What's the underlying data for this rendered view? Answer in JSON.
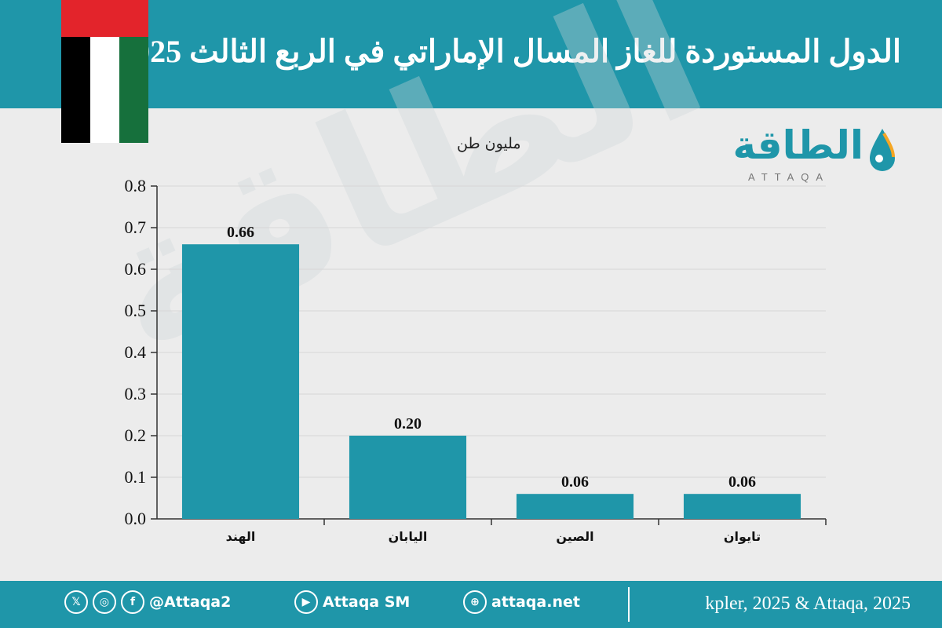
{
  "title": "الدول المستوردة للغاز المسال الإماراتي في الربع الثالث 2025",
  "logo": {
    "arabic": "الطاقة",
    "latin": "ATTAQA"
  },
  "watermark": "الطاقة",
  "colors": {
    "teal": "#1f96a9",
    "flag_red": "#e3242b",
    "flag_green": "#16703c",
    "flag_black": "#000000",
    "flag_white": "#ffffff"
  },
  "footer": {
    "source": "kpler, 2025 & Attaqa, 2025",
    "handle": "@Attaqa2",
    "youtube": "Attaqa SM",
    "website": "attaqa.net",
    "icons": [
      "x-icon",
      "instagram-icon",
      "facebook-icon",
      "youtube-icon",
      "globe-icon"
    ]
  },
  "chart_data": {
    "type": "bar",
    "unit_label": "مليون طن",
    "categories": [
      "الهند",
      "اليابان",
      "الصين",
      "تايوان"
    ],
    "values": [
      0.66,
      0.2,
      0.06,
      0.06
    ],
    "value_labels": [
      "0.66",
      "0.20",
      "0.06",
      "0.06"
    ],
    "ylim": [
      0,
      0.8
    ],
    "yticks": [
      "0.0",
      "0.1",
      "0.2",
      "0.3",
      "0.4",
      "0.5",
      "0.6",
      "0.7",
      "0.8"
    ],
    "grid": true,
    "bar_color": "#1f96a9"
  }
}
